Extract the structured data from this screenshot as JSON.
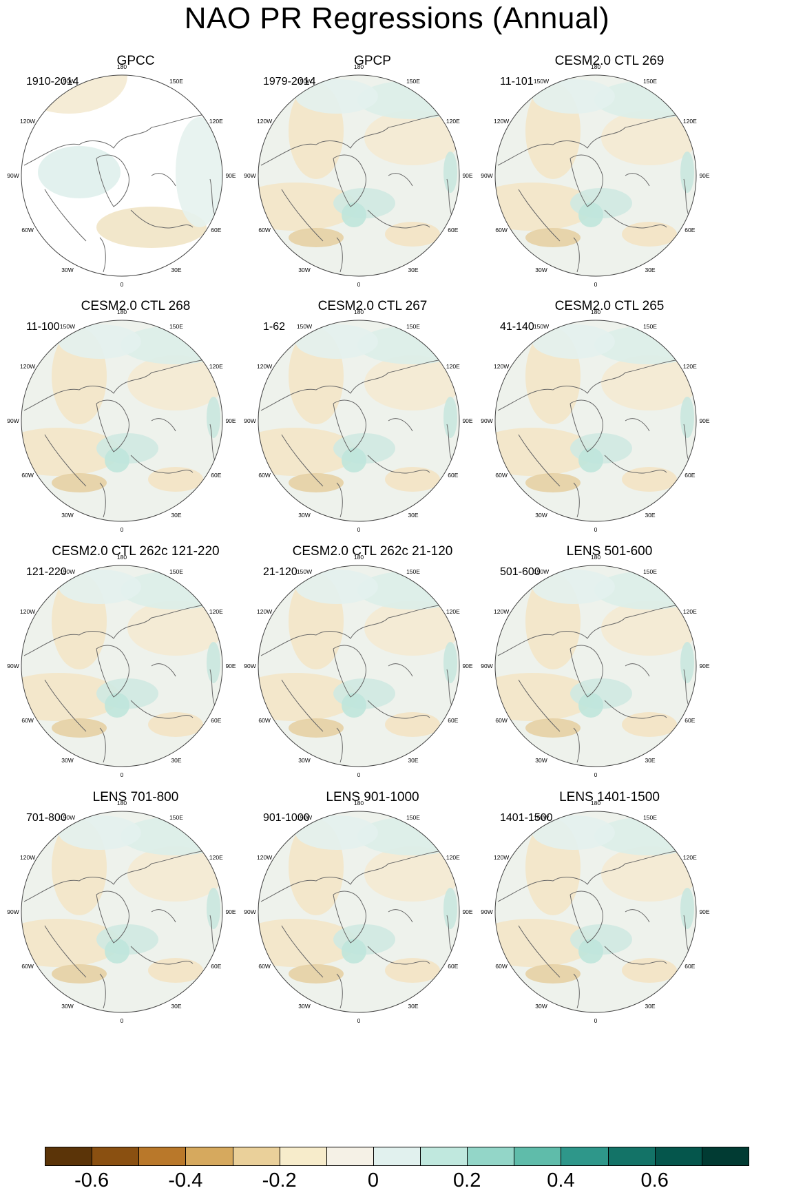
{
  "title": "NAO PR Regressions (Annual)",
  "longitude_labels": [
    "180",
    "150E",
    "120E",
    "90E",
    "60E",
    "30E",
    "0",
    "30W",
    "60W",
    "90W",
    "120W",
    "150W"
  ],
  "panels": [
    {
      "title": "GPCC",
      "period": "1910-2014",
      "masked_ocean": true
    },
    {
      "title": "GPCP",
      "period": "1979-2014"
    },
    {
      "title": "CESM2.0 CTL 269",
      "period": "11-101"
    },
    {
      "title": "CESM2.0 CTL 268",
      "period": "11-100"
    },
    {
      "title": "CESM2.0 CTL 267",
      "period": "1-62"
    },
    {
      "title": "CESM2.0 CTL 265",
      "period": "41-140"
    },
    {
      "title": "CESM2.0 CTL 262c 121-220",
      "period": "121-220"
    },
    {
      "title": "CESM2.0 CTL 262c 21-120",
      "period": "21-120"
    },
    {
      "title": "LENS 501-600",
      "period": "501-600"
    },
    {
      "title": "LENS 701-800",
      "period": "701-800"
    },
    {
      "title": "LENS 901-1000",
      "period": "901-1000"
    },
    {
      "title": "LENS 1401-1500",
      "period": "1401-1500"
    }
  ],
  "colorbar": {
    "colors": [
      "#5b3408",
      "#8a5011",
      "#b9782a",
      "#d6a95e",
      "#ead09a",
      "#f7eccb",
      "#f5f1e6",
      "#e1f1ee",
      "#c0e8de",
      "#93d6c8",
      "#5fbcaa",
      "#2e978a",
      "#137367",
      "#05564c",
      "#013b33"
    ],
    "labels": [
      "-0.6",
      "-0.4",
      "-0.2",
      "0",
      "0.2",
      "0.4",
      "0.6"
    ]
  }
}
